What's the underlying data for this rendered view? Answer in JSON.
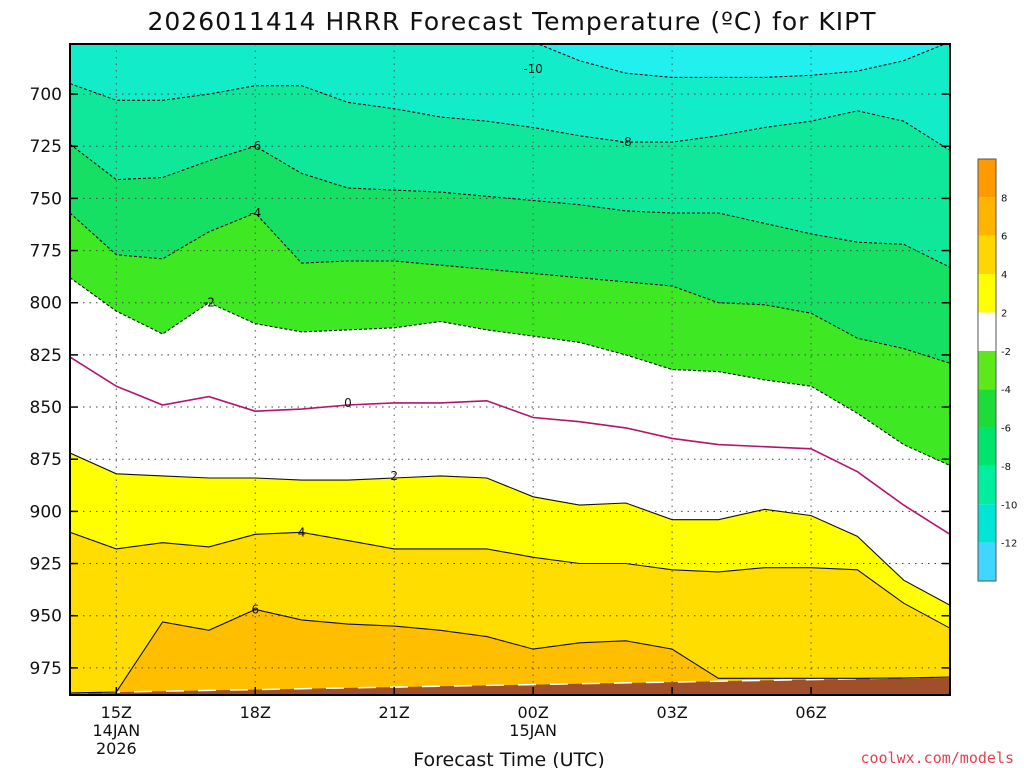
{
  "chart_data": {
    "type": "contour",
    "title": "2026011414 HRRR Forecast Temperature (ºC) for KIPT",
    "xlabel": "Forecast Time (UTC)",
    "credit": "coolwx.com/models",
    "credit_color": "#e8404f",
    "x_hours": [
      -1,
      0,
      1,
      2,
      3,
      4,
      5,
      6,
      7,
      8,
      9,
      10,
      11,
      12,
      13,
      14,
      15,
      16,
      17,
      18
    ],
    "x_range": [
      -1,
      18
    ],
    "x_ticks": [
      {
        "hour": 0,
        "lines": [
          "15Z",
          "14JAN",
          "2026"
        ]
      },
      {
        "hour": 3,
        "lines": [
          "18Z"
        ]
      },
      {
        "hour": 6,
        "lines": [
          "21Z"
        ]
      },
      {
        "hour": 9,
        "lines": [
          "00Z",
          "15JAN"
        ]
      },
      {
        "hour": 12,
        "lines": [
          "03Z"
        ]
      },
      {
        "hour": 15,
        "lines": [
          "06Z"
        ]
      }
    ],
    "y_range_hpa": [
      988,
      676
    ],
    "y_ticks": [
      700,
      725,
      750,
      775,
      800,
      825,
      850,
      875,
      900,
      925,
      950,
      975
    ],
    "surface_hpa": [
      987,
      986.6,
      986.2,
      985.8,
      985.4,
      985,
      984.6,
      984.2,
      983.8,
      983.4,
      983,
      982.6,
      982.2,
      981.8,
      981.4,
      981,
      980.6,
      980.2,
      979.8,
      979.4
    ],
    "contour_levels": [
      -10,
      -8,
      -6,
      -4,
      -2,
      0,
      2,
      4,
      6
    ],
    "contours": [
      {
        "level": -10,
        "label": "-10",
        "label_at": [
          9,
          688
        ],
        "pressure": [
          675,
          675,
          675,
          675,
          675,
          675,
          675,
          675,
          675,
          675,
          675,
          684,
          690,
          692,
          692,
          692,
          691,
          689,
          684,
          675
        ]
      },
      {
        "level": -8,
        "label": "-8",
        "label_at": [
          11,
          723
        ],
        "pressure": [
          695,
          703,
          703,
          700,
          696,
          696,
          704,
          707,
          711,
          713,
          716,
          720,
          723,
          723,
          720,
          716,
          713,
          708,
          713,
          727
        ]
      },
      {
        "level": -6,
        "label": "-6",
        "label_at": [
          3,
          725
        ],
        "pressure": [
          724,
          741,
          740,
          732,
          725,
          738,
          745,
          746,
          747,
          749,
          751,
          753,
          756,
          757,
          757,
          762,
          767,
          771,
          772,
          783
        ]
      },
      {
        "level": -4,
        "label": "-4",
        "label_at": [
          3,
          757
        ],
        "pressure": [
          757,
          777,
          779,
          766,
          757,
          781,
          780,
          780,
          782,
          784,
          786,
          788,
          790,
          792,
          800,
          801,
          805,
          817,
          822,
          829
        ]
      },
      {
        "level": -2,
        "label": "-2",
        "label_at": [
          2,
          800
        ],
        "pressure": [
          788,
          804,
          815,
          800,
          810,
          814,
          813,
          812,
          809,
          813,
          816,
          819,
          825,
          832,
          833,
          837,
          840,
          853,
          868,
          878
        ]
      },
      {
        "level": 0,
        "label": "0",
        "label_at": [
          5,
          848
        ],
        "pressure": [
          826,
          840,
          849,
          845,
          852,
          851,
          849,
          848,
          848,
          847,
          855,
          857,
          860,
          865,
          868,
          869,
          870,
          881,
          897,
          911
        ]
      },
      {
        "level": 2,
        "label": "2",
        "label_at": [
          6,
          883
        ],
        "pressure": [
          872,
          882,
          883,
          884,
          884,
          885,
          885,
          884,
          883,
          884,
          893,
          897,
          896,
          904,
          904,
          899,
          902,
          912,
          933,
          945
        ]
      },
      {
        "level": 4,
        "label": "4",
        "label_at": [
          4,
          910
        ],
        "pressure": [
          910,
          918,
          915,
          917,
          911,
          910,
          914,
          918,
          918,
          918,
          922,
          925,
          925,
          928,
          929,
          927,
          927,
          928,
          944,
          956
        ]
      },
      {
        "level": 6,
        "label": "6",
        "label_at": [
          3,
          947
        ],
        "pressure": [
          987,
          987,
          953,
          957,
          947,
          952,
          954,
          955,
          957,
          960,
          966,
          963,
          962,
          966,
          980,
          980,
          980,
          980,
          980,
          980
        ]
      }
    ],
    "colorbar": {
      "colors": [
        "#3fd7ff",
        "#00e5d6",
        "#00ef9e",
        "#00e46c",
        "#1edc37",
        "#5ce81a",
        "#ffffff",
        "#ffff00",
        "#ffd600",
        "#ffb400",
        "#ff9a00"
      ],
      "labels": [
        "-12",
        "-10",
        "-8",
        "-6",
        "-4",
        "-2",
        "2",
        "4",
        "6",
        "8"
      ]
    },
    "fill_colors": {
      "lt_-10": "#22f0ee",
      "-10_-8": "#12ecc8",
      "-8_-6": "#0fe89a",
      "-6_-4": "#15e063",
      "-4_-2": "#3ee823",
      "-2_0": "#ffffff",
      "0_2": "#ffffff",
      "2_4": "#ffff00",
      "4_6": "#ffdd00",
      "gt_6": "#ffbf00",
      "ground": "#a05028",
      "zero_line": "#b3146e"
    }
  }
}
